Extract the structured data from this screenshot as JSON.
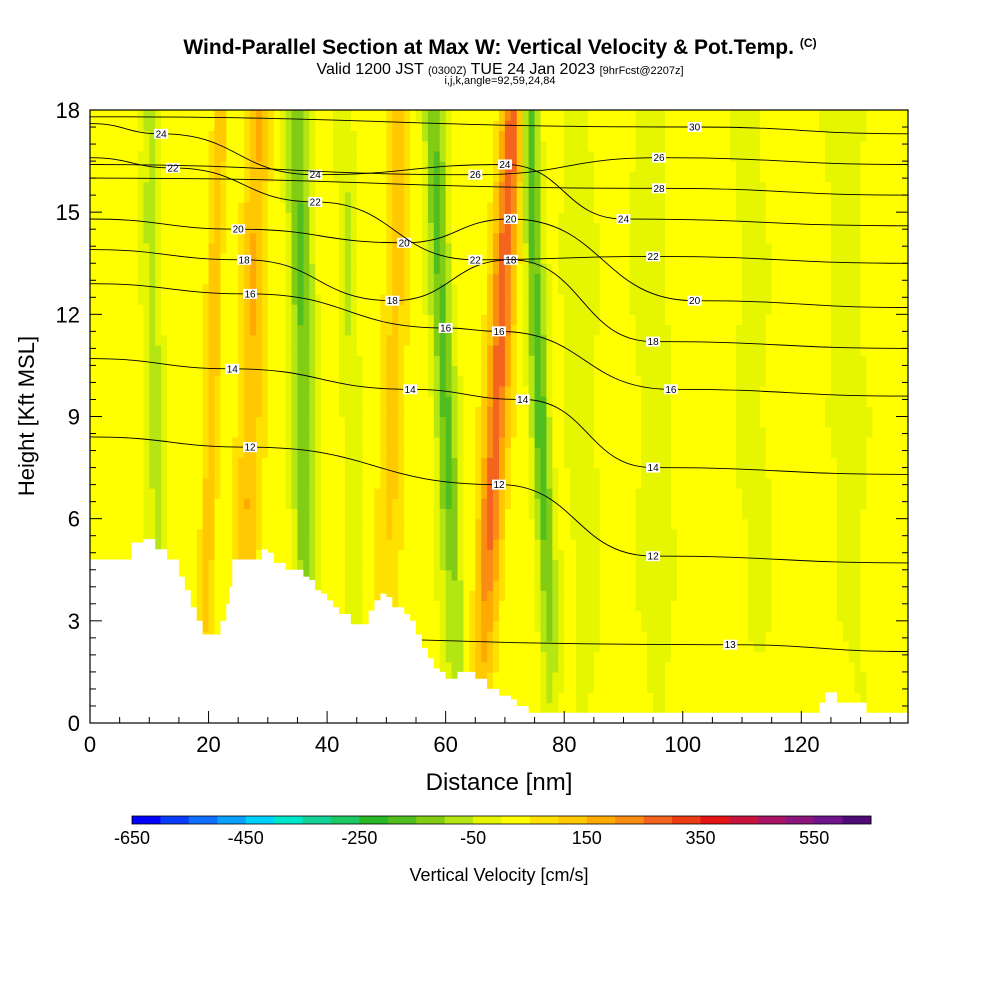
{
  "title": {
    "main": "Wind-Parallel Section at Max W: Vertical Velocity & Pot.Temp.",
    "copyright": "(C)",
    "valid_prefix": "Valid 1200 JST",
    "valid_utc": "(0300Z)",
    "valid_date": "TUE 24 Jan 2023",
    "forecast": "[9hrFcst@2207z]",
    "grid_info": "i,j,k,angle=92,59,24,84"
  },
  "chart_data": {
    "type": "heatmap",
    "xlabel": "Distance [nm]",
    "ylabel": "Height [Kft MSL]",
    "xlim": [
      0,
      138
    ],
    "ylim": [
      0,
      18
    ],
    "x_ticks": [
      "0",
      "20",
      "40",
      "60",
      "80",
      "100",
      "120"
    ],
    "x_tick_values": [
      0,
      20,
      40,
      60,
      80,
      100,
      120
    ],
    "y_ticks": [
      "0",
      "3",
      "6",
      "9",
      "12",
      "15",
      "18"
    ],
    "y_tick_values": [
      0,
      3,
      6,
      9,
      12,
      15,
      18
    ],
    "colorbar": {
      "label": "Vertical Velocity [cm/s]",
      "tick_labels": [
        "-650",
        "-450",
        "-250",
        "-50",
        "150",
        "350",
        "550"
      ],
      "tick_values": [
        -650,
        -450,
        -250,
        -50,
        150,
        350,
        550
      ],
      "min": -650,
      "max": 650,
      "step": 50,
      "colors": [
        "#0000ff",
        "#0a3cff",
        "#0d6eff",
        "#0aa0ff",
        "#00d2ff",
        "#00e6c8",
        "#14d296",
        "#1ec864",
        "#28b928",
        "#50be1e",
        "#82cd14",
        "#b4e614",
        "#e6f500",
        "#ffff00",
        "#ffe100",
        "#ffc800",
        "#ffaa00",
        "#fa8c14",
        "#f5641e",
        "#eb3c14",
        "#e61414",
        "#c8143c",
        "#aa1464",
        "#8c147d",
        "#6e148c",
        "#500a78"
      ]
    },
    "velocity_features": [
      {
        "x": 11,
        "w": 1.5,
        "amp": -90
      },
      {
        "x": 20.5,
        "w": 1.2,
        "amp": 120
      },
      {
        "x": 27,
        "w": 2.0,
        "amp": 130
      },
      {
        "x": 36,
        "w": 2.0,
        "amp": -170
      },
      {
        "x": 44,
        "w": 1.5,
        "amp": -70
      },
      {
        "x": 51,
        "w": 2.0,
        "amp": 100
      },
      {
        "x": 60,
        "w": 1.8,
        "amp": -180
      },
      {
        "x": 68.5,
        "w": 2.0,
        "amp": 260
      },
      {
        "x": 76,
        "w": 1.5,
        "amp": -200
      },
      {
        "x": 83,
        "w": 2.5,
        "amp": -60
      },
      {
        "x": 95,
        "w": 3.0,
        "amp": -50
      },
      {
        "x": 112,
        "w": 3.0,
        "amp": -40
      },
      {
        "x": 128,
        "w": 3.0,
        "amp": -40
      }
    ],
    "potential_temperature_contours": [
      {
        "label": "12",
        "label_positions": [
          [
            27,
            8.1
          ],
          [
            69,
            7.0
          ],
          [
            95,
            4.9
          ]
        ]
      },
      {
        "label": "13",
        "label_positions": [
          [
            108,
            2.3
          ]
        ]
      },
      {
        "label": "14",
        "label_positions": [
          [
            24,
            10.4
          ],
          [
            54,
            9.8
          ],
          [
            73,
            9.5
          ],
          [
            95,
            7.5
          ]
        ]
      },
      {
        "label": "16",
        "label_positions": [
          [
            27,
            12.6
          ],
          [
            60,
            11.6
          ],
          [
            69,
            11.5
          ],
          [
            98,
            9.8
          ]
        ]
      },
      {
        "label": "18",
        "label_positions": [
          [
            26,
            13.6
          ],
          [
            51,
            12.4
          ],
          [
            71,
            13.6
          ],
          [
            95,
            11.2
          ]
        ]
      },
      {
        "label": "20",
        "label_positions": [
          [
            25,
            14.5
          ],
          [
            53,
            14.1
          ],
          [
            71,
            14.8
          ],
          [
            102,
            12.4
          ]
        ]
      },
      {
        "label": "22",
        "label_positions": [
          [
            14,
            16.3
          ],
          [
            38,
            15.3
          ],
          [
            65,
            13.6
          ],
          [
            95,
            13.7
          ]
        ]
      },
      {
        "label": "24",
        "label_positions": [
          [
            12,
            17.3
          ],
          [
            38,
            16.1
          ],
          [
            70,
            16.4
          ],
          [
            90,
            14.8
          ]
        ]
      },
      {
        "label": "26",
        "label_positions": [
          [
            65,
            16.1
          ],
          [
            96,
            16.6
          ]
        ]
      },
      {
        "label": "28",
        "label_positions": [
          [
            96,
            15.7
          ]
        ]
      },
      {
        "label": "30",
        "label_positions": [
          [
            102,
            17.5
          ]
        ]
      }
    ],
    "terrain_profile": [
      [
        0,
        4.8
      ],
      [
        6,
        4.8
      ],
      [
        7,
        5.3
      ],
      [
        9,
        5.4
      ],
      [
        11,
        5.1
      ],
      [
        13,
        4.8
      ],
      [
        15,
        4.3
      ],
      [
        16,
        3.9
      ],
      [
        17,
        3.4
      ],
      [
        18,
        3.0
      ],
      [
        19,
        2.6
      ],
      [
        21,
        2.6
      ],
      [
        22,
        3.0
      ],
      [
        23,
        3.5
      ],
      [
        23.5,
        4.0
      ],
      [
        24,
        4.8
      ],
      [
        28,
        4.8
      ],
      [
        29,
        5.1
      ],
      [
        30,
        5.0
      ],
      [
        31,
        4.7
      ],
      [
        33,
        4.5
      ],
      [
        35,
        4.5
      ],
      [
        36,
        4.3
      ],
      [
        37,
        4.2
      ],
      [
        38,
        3.9
      ],
      [
        39,
        3.8
      ],
      [
        40,
        3.6
      ],
      [
        41,
        3.4
      ],
      [
        42,
        3.2
      ],
      [
        43,
        3.2
      ],
      [
        44,
        2.9
      ],
      [
        46,
        2.9
      ],
      [
        47,
        3.3
      ],
      [
        48,
        3.6
      ],
      [
        49,
        3.8
      ],
      [
        50,
        3.7
      ],
      [
        51,
        3.4
      ],
      [
        53,
        3.2
      ],
      [
        54,
        3.0
      ],
      [
        55,
        2.6
      ],
      [
        56,
        2.2
      ],
      [
        57,
        1.9
      ],
      [
        58,
        1.6
      ],
      [
        59,
        1.5
      ],
      [
        60,
        1.3
      ],
      [
        62,
        1.5
      ],
      [
        64,
        1.5
      ],
      [
        65,
        1.3
      ],
      [
        67,
        1.0
      ],
      [
        69,
        0.8
      ],
      [
        71,
        0.7
      ],
      [
        72,
        0.5
      ],
      [
        74,
        0.3
      ],
      [
        78,
        0.3
      ],
      [
        122,
        0.3
      ],
      [
        123,
        0.6
      ],
      [
        124,
        0.9
      ],
      [
        126,
        0.6
      ],
      [
        130,
        0.6
      ],
      [
        131,
        0.3
      ],
      [
        138,
        0.3
      ]
    ]
  }
}
